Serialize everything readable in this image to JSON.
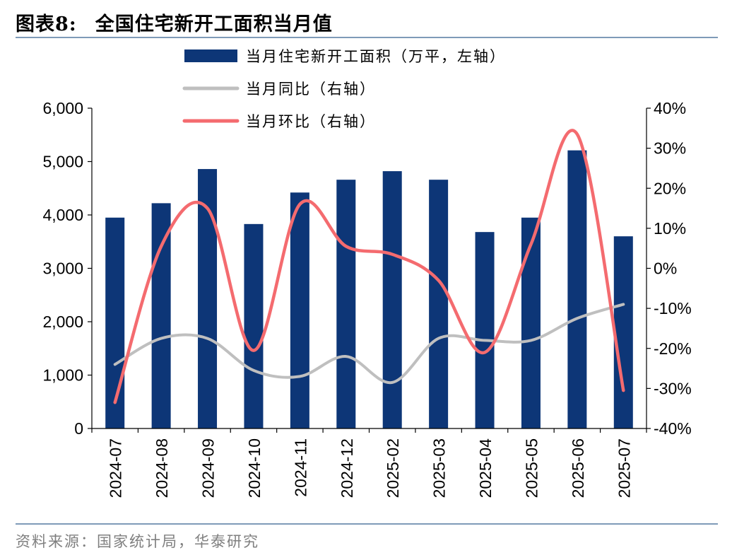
{
  "header": {
    "label": "图表8:",
    "title": "全国住宅新开工面积当月值"
  },
  "footer": {
    "source": "资料来源：国家统计局，华泰研究"
  },
  "colors": {
    "bar": "#0d3677",
    "yoy": "#bfbfbf",
    "mom": "#f46b6f",
    "rule": "#7f9bb8"
  },
  "chart_data": {
    "type": "bar",
    "categories": [
      "2024-07",
      "2024-08",
      "2024-09",
      "2024-10",
      "2024-11",
      "2024-12",
      "2025-02",
      "2025-03",
      "2025-04",
      "2025-05",
      "2025-06",
      "2025-07"
    ],
    "y_left": {
      "min": 0,
      "max": 6000,
      "ticks": [
        0,
        1000,
        2000,
        3000,
        4000,
        5000,
        6000
      ],
      "tick_labels": [
        "0",
        "1,000",
        "2,000",
        "3,000",
        "4,000",
        "5,000",
        "6,000"
      ]
    },
    "y_right": {
      "min": -40,
      "max": 40,
      "ticks": [
        -40,
        -30,
        -20,
        -10,
        0,
        10,
        20,
        30,
        40
      ],
      "tick_labels": [
        "-40%",
        "-30%",
        "-20%",
        "-10%",
        "0%",
        "10%",
        "20%",
        "30%",
        "40%"
      ]
    },
    "series": [
      {
        "name": "当月住宅新开工面积（万平，左轴）",
        "type": "bar",
        "axis": "left",
        "values": [
          3950,
          4220,
          4860,
          3830,
          4420,
          4660,
          4820,
          4660,
          3680,
          3950,
          5210,
          3600
        ]
      },
      {
        "name": "当月同比（右轴）",
        "type": "line",
        "axis": "right",
        "values": [
          -24,
          -17.5,
          -17.5,
          -25.5,
          -27,
          -22,
          -28.5,
          -17.5,
          -18,
          -18,
          -12.5,
          -9
        ]
      },
      {
        "name": "当月环比（右轴）",
        "type": "line",
        "axis": "right",
        "values": [
          -33.5,
          5.5,
          15,
          -20.5,
          16,
          5.5,
          3.5,
          -3,
          -21,
          6,
          33.5,
          -30.5
        ]
      }
    ],
    "legend_position": "top",
    "grid": false
  }
}
